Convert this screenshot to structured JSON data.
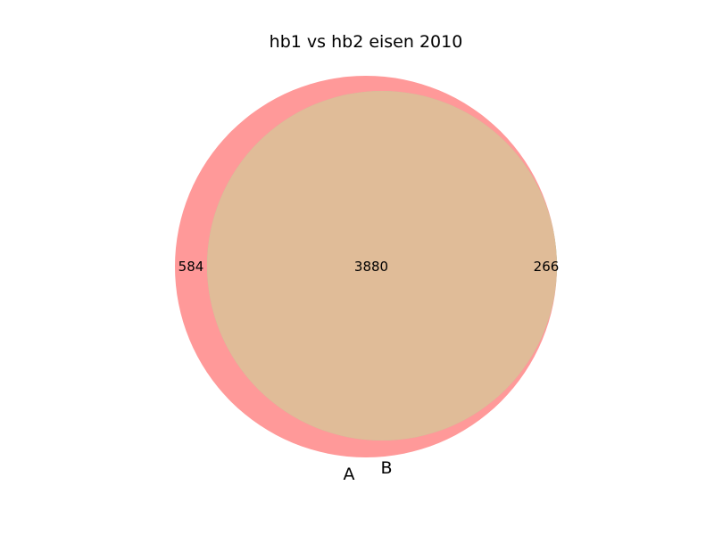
{
  "chart_data": {
    "type": "venn",
    "title": "hb1 vs hb2 eisen 2010",
    "sets": [
      {
        "name": "A",
        "color": "#ff9999"
      },
      {
        "name": "B",
        "color": "#9ccc9c"
      }
    ],
    "regions": {
      "A_only": 584,
      "intersection": 3880,
      "B_only": 266
    },
    "intersection_color": "#e0bc98"
  }
}
